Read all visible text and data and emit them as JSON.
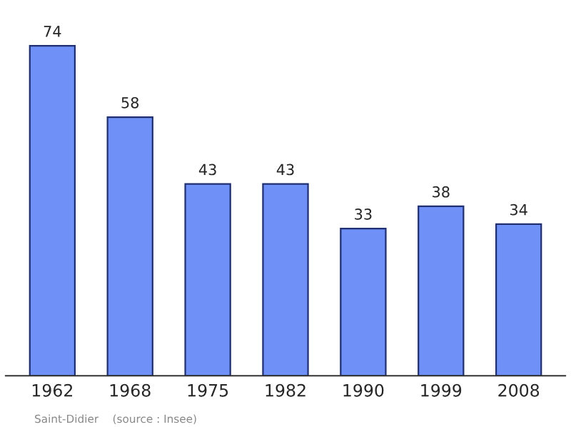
{
  "chart_data": {
    "type": "bar",
    "categories": [
      "1962",
      "1968",
      "1975",
      "1982",
      "1990",
      "1999",
      "2008"
    ],
    "values": [
      74,
      58,
      43,
      43,
      33,
      38,
      34
    ],
    "color": "#6f91f7",
    "data_labels": true,
    "annotations": [
      "Saint-Didier    (source : Insee)"
    ]
  }
}
